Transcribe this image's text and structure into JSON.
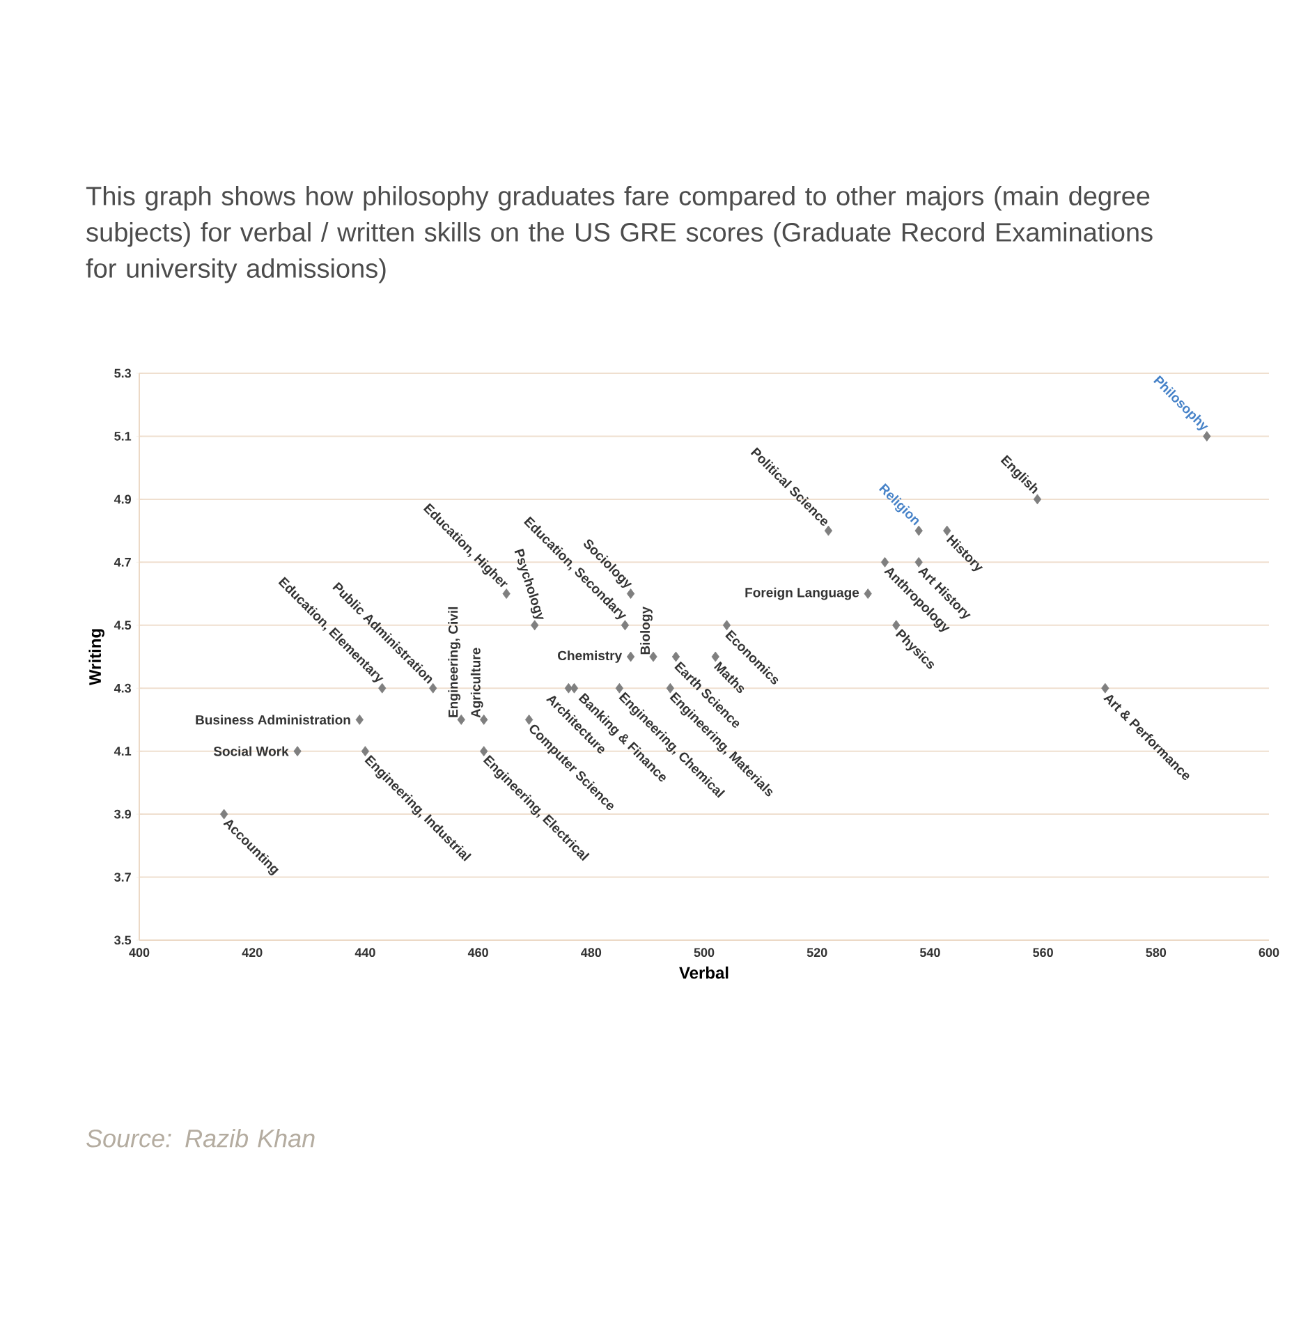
{
  "chart_data": {
    "type": "scatter",
    "title": "This graph shows how philosophy graduates fare compared to other majors (main degree subjects) for verbal / written skills on the US GRE scores (Graduate Record Examinations for university admissions)",
    "xlabel": "Verbal",
    "ylabel": "Writing",
    "x": [
      415,
      428,
      439,
      440,
      443,
      452,
      457,
      461,
      461,
      465,
      470,
      469,
      476,
      477,
      486,
      487,
      487,
      491,
      485,
      495,
      494,
      502,
      504,
      522,
      529,
      532,
      534,
      538,
      538,
      543,
      559,
      571,
      589
    ],
    "values": [
      3.9,
      4.1,
      4.2,
      4.1,
      4.3,
      4.3,
      4.2,
      4.2,
      4.1,
      4.6,
      4.5,
      4.2,
      4.3,
      4.3,
      4.5,
      4.6,
      4.4,
      4.4,
      4.3,
      4.4,
      4.3,
      4.4,
      4.5,
      4.8,
      4.6,
      4.7,
      4.5,
      4.8,
      4.7,
      4.8,
      4.9,
      4.3,
      5.1
    ],
    "color": "#7f7f7f",
    "marker": "diamond",
    "grid": "y",
    "xlim": [
      400,
      600
    ],
    "ylim": [
      3.5,
      5.3
    ],
    "xticks": [
      400,
      420,
      440,
      460,
      480,
      500,
      520,
      540,
      560,
      580,
      600
    ],
    "yticks": [
      3.5,
      3.7,
      3.9,
      4.1,
      4.3,
      4.5,
      4.7,
      4.9,
      5.1,
      5.3
    ],
    "annotations": [
      {
        "text": "Accounting",
        "x": 415,
        "y": 3.9
      },
      {
        "text": "Social Work",
        "x": 428,
        "y": 4.1
      },
      {
        "text": "Business Administration",
        "x": 439,
        "y": 4.2
      },
      {
        "text": "Engineering, Industrial",
        "x": 440,
        "y": 4.1
      },
      {
        "text": "Education, Elementary",
        "x": 443,
        "y": 4.3
      },
      {
        "text": "Public Administration",
        "x": 452,
        "y": 4.3
      },
      {
        "text": "Engineering, Civil",
        "x": 457,
        "y": 4.2
      },
      {
        "text": "Agriculture",
        "x": 461,
        "y": 4.2
      },
      {
        "text": "Engineering, Electrical",
        "x": 461,
        "y": 4.1
      },
      {
        "text": "Education, Higher",
        "x": 465,
        "y": 4.6
      },
      {
        "text": "Psychology",
        "x": 470,
        "y": 4.5
      },
      {
        "text": "Computer Science",
        "x": 469,
        "y": 4.2
      },
      {
        "text": "Architecture",
        "x": 476,
        "y": 4.3
      },
      {
        "text": "Banking & Finance",
        "x": 477,
        "y": 4.3
      },
      {
        "text": "Education, Secondary",
        "x": 486,
        "y": 4.5
      },
      {
        "text": "Sociology",
        "x": 487,
        "y": 4.6
      },
      {
        "text": "Chemistry",
        "x": 487,
        "y": 4.4
      },
      {
        "text": "Biology",
        "x": 491,
        "y": 4.4
      },
      {
        "text": "Engineering, Chemical",
        "x": 485,
        "y": 4.3
      },
      {
        "text": "Earth Science",
        "x": 495,
        "y": 4.4
      },
      {
        "text": "Engineering, Materials",
        "x": 494,
        "y": 4.3
      },
      {
        "text": "Maths",
        "x": 502,
        "y": 4.4
      },
      {
        "text": "Economics",
        "x": 504,
        "y": 4.5
      },
      {
        "text": "Political Science",
        "x": 522,
        "y": 4.8
      },
      {
        "text": "Foreign Language",
        "x": 529,
        "y": 4.6
      },
      {
        "text": "Anthropology",
        "x": 532,
        "y": 4.7
      },
      {
        "text": "Physics",
        "x": 534,
        "y": 4.5
      },
      {
        "text": "Religion",
        "x": 538,
        "y": 4.8
      },
      {
        "text": "Art History",
        "x": 538,
        "y": 4.7
      },
      {
        "text": "History",
        "x": 543,
        "y": 4.8
      },
      {
        "text": "English",
        "x": 559,
        "y": 4.9
      },
      {
        "text": "Art & Performance",
        "x": 571,
        "y": 4.3
      },
      {
        "text": "Philosophy",
        "x": 589,
        "y": 5.1
      },
      "Source: Razib Khan"
    ]
  }
}
